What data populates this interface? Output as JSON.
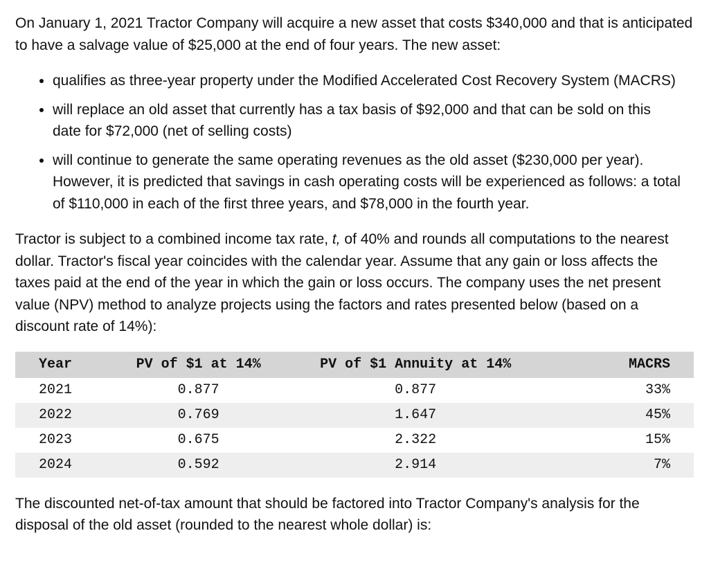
{
  "para1": "On January 1, 2021 Tractor Company will acquire a new asset that costs $340,000 and that is anticipated to have a salvage value of $25,000 at the end of four years. The new asset:",
  "bullets": [
    "qualifies as three-year property under the Modified Accelerated Cost Recovery System (MACRS)",
    "will replace an old asset that currently has a tax basis of $92,000 and that can be sold on this date for $72,000 (net of selling costs)",
    "will continue to generate the same operating revenues as the old asset ($230,000 per year). However, it is predicted that savings in cash operating costs will be experienced as follows: a total of $110,000 in each of the first three years, and $78,000 in the fourth year."
  ],
  "para2_a": "Tractor is subject to a combined income tax rate, ",
  "para2_t": "t,",
  "para2_b": " of 40% and rounds all computations to the nearest dollar. Tractor's fiscal year coincides with the calendar year. Assume that any gain or loss affects the taxes paid at the end of the year in which the gain or loss occurs. The company uses the net present value (NPV) method to analyze projects using the factors and rates presented below (based on a discount rate of 14%):",
  "table": {
    "header_bg": "#d5d5d5",
    "stripe_bg": "#eeeeee",
    "font": "Courier New",
    "columns": [
      {
        "key": "year",
        "label": "Year"
      },
      {
        "key": "pv1",
        "label": "PV of $1 at 14%"
      },
      {
        "key": "pvann",
        "label": "PV of $1 Annuity at 14%"
      },
      {
        "key": "macrs",
        "label": "MACRS"
      }
    ],
    "rows": [
      {
        "year": "2021",
        "pv1": "0.877",
        "pvann": "0.877",
        "macrs": "33%"
      },
      {
        "year": "2022",
        "pv1": "0.769",
        "pvann": "1.647",
        "macrs": "45%"
      },
      {
        "year": "2023",
        "pv1": "0.675",
        "pvann": "2.322",
        "macrs": "15%"
      },
      {
        "year": "2024",
        "pv1": "0.592",
        "pvann": "2.914",
        "macrs": "7%"
      }
    ]
  },
  "para3": "The discounted net-of-tax amount that should be factored into Tractor Company's analysis for the disposal of the old asset (rounded to the nearest whole dollar) is:"
}
